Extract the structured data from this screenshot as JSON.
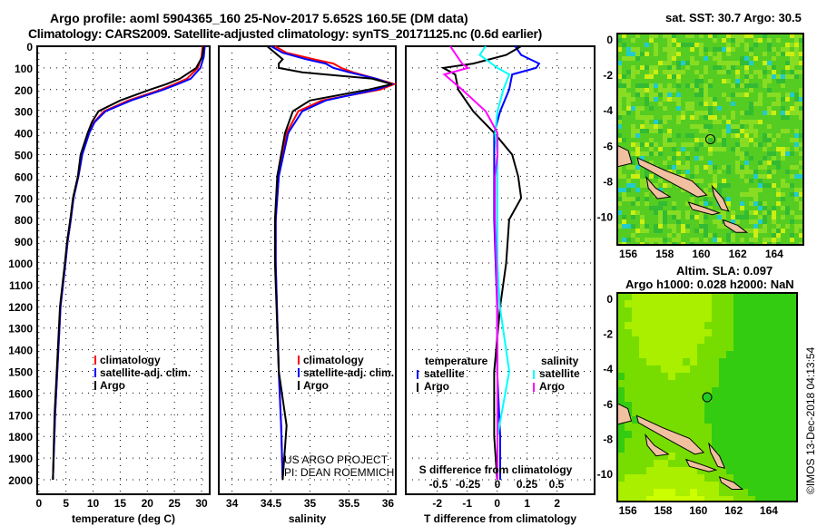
{
  "title_line1": "Argo profile: aoml 5904365_160 25-Nov-2017 5.652S 160.5E (DM data)",
  "title_line2": "Climatology: CARS2009. Satellite-adjusted climatology: synTS_20171125.nc (0.6d earlier)",
  "credit1": "US ARGO PROJECT",
  "credit2": "PI: DEAN ROEMMICH",
  "timestamp": "©IMOS 13-Dec-2018 04:13:54",
  "chart_data": [
    {
      "type": "line",
      "name": "temperature",
      "xlabel": "temperature (deg C)",
      "xlim": [
        -0.3,
        31.5
      ],
      "ylim": [
        2115,
        0
      ],
      "xticks": [
        "0",
        "5",
        "10",
        "15",
        "20",
        "25",
        "30"
      ],
      "xtick_values": [
        0,
        5,
        10,
        15,
        20,
        25,
        30
      ],
      "yticks": [
        "0",
        "100",
        "200",
        "300",
        "400",
        "500",
        "600",
        "700",
        "800",
        "900",
        "1000",
        "1100",
        "1200",
        "1300",
        "1400",
        "1500",
        "1600",
        "1700",
        "1800",
        "1900",
        "2000"
      ],
      "legend": [
        "climatology",
        "satellite-adj. clim.",
        "Argo"
      ],
      "depth": [
        0,
        50,
        100,
        150,
        175,
        200,
        250,
        300,
        350,
        400,
        500,
        600,
        700,
        800,
        900,
        1000,
        1200,
        1500,
        1700,
        2000
      ],
      "series": [
        {
          "name": "climatology",
          "color": "#ff0000",
          "values": [
            30.2,
            30,
            29.3,
            27.3,
            25,
            22.5,
            16.5,
            12,
            10.2,
            9.2,
            8,
            7.3,
            6.4,
            5.9,
            5.3,
            4.9,
            4,
            3.4,
            3.0,
            2.6
          ]
        },
        {
          "name": "satellite-adj. clim.",
          "color": "#0000ff",
          "values": [
            30.6,
            30.4,
            29.8,
            28,
            25.6,
            23,
            17,
            12.3,
            10.3,
            9.3,
            8,
            7.3,
            6.4,
            5.9,
            5.3,
            4.9,
            4,
            3.4,
            3.0,
            2.6
          ]
        },
        {
          "name": "Argo",
          "color": "#000000",
          "values": [
            30.4,
            30.1,
            29,
            26,
            23.5,
            20.5,
            15,
            11,
            9.8,
            9,
            7.7,
            7.2,
            6.3,
            5.8,
            5.2,
            4.8,
            3.9,
            3.3,
            2.9,
            2.6
          ]
        }
      ]
    },
    {
      "type": "line",
      "name": "salinity",
      "xlabel": "salinity",
      "xlim": [
        33.83,
        36.1
      ],
      "ylim": [
        2115,
        0
      ],
      "xticks": [
        "34",
        "34.5",
        "35",
        "35.5",
        "36"
      ],
      "xtick_values": [
        34,
        34.5,
        35,
        35.5,
        36
      ],
      "legend": [
        "climatology",
        "satellite-adj. clim.",
        "Argo"
      ],
      "depth": [
        0,
        30,
        60,
        80,
        100,
        120,
        150,
        175,
        200,
        250,
        300,
        400,
        600,
        800,
        1000,
        1500,
        1750,
        2000
      ],
      "series": [
        {
          "name": "climatology",
          "color": "#ff0000",
          "values": [
            34.55,
            34.7,
            35.05,
            35.3,
            35.4,
            35.55,
            35.85,
            36.08,
            35.9,
            35.15,
            34.85,
            34.7,
            34.6,
            34.56,
            34.56,
            34.6,
            34.63,
            34.65
          ]
        },
        {
          "name": "satellite-adj. clim.",
          "color": "#0000ff",
          "values": [
            34.5,
            34.65,
            34.95,
            35.2,
            35.3,
            35.5,
            35.85,
            36.05,
            35.85,
            35.2,
            34.9,
            34.72,
            34.6,
            34.56,
            34.56,
            34.6,
            34.63,
            34.65
          ]
        },
        {
          "name": "Argo",
          "color": "#000000",
          "values": [
            34.45,
            34.55,
            34.65,
            34.6,
            34.6,
            34.9,
            35.8,
            36.05,
            35.75,
            35.0,
            34.78,
            34.68,
            34.58,
            34.55,
            34.55,
            34.6,
            34.7,
            34.65
          ]
        }
      ]
    },
    {
      "type": "line",
      "name": "difference",
      "xlabel": "T difference from climatology",
      "xlabel2": "S difference from climatology",
      "xlim": [
        -3.05,
        3.25
      ],
      "ylim": [
        2115,
        0
      ],
      "xticks": [
        "-2",
        "-1",
        "0",
        "1",
        "2"
      ],
      "xtick_values": [
        -2,
        -1,
        0,
        1,
        2
      ],
      "s_ticks": [
        "-0.5",
        "-0.25",
        "0",
        "0.25",
        "0.5"
      ],
      "s_tick_values": [
        -0.5,
        -0.25,
        0,
        0.25,
        0.5
      ],
      "legend_t": {
        "title": "temperature",
        "items": [
          "satellite",
          "Argo"
        ]
      },
      "legend_s": {
        "title": "salinity",
        "items": [
          "satellite",
          "Argo"
        ]
      },
      "depth": [
        0,
        40,
        80,
        100,
        130,
        200,
        300,
        400,
        500,
        600,
        700,
        800,
        1000,
        1200,
        1500,
        1800,
        2000
      ],
      "series": [
        {
          "name": "T satellite",
          "color": "#0000ff",
          "values": [
            0.6,
            0.8,
            1.4,
            1.3,
            0.5,
            0.4,
            0.1,
            -0.1,
            -0.1,
            -0.1,
            -0.1,
            -0.1,
            -0.05,
            0,
            0,
            0.1,
            0.1
          ]
        },
        {
          "name": "T Argo",
          "color": "#000000",
          "values": [
            0.8,
            0.3,
            -0.8,
            -1.8,
            -1.4,
            -1.3,
            -0.8,
            -0.1,
            0.5,
            0.7,
            0.8,
            0.4,
            0.3,
            0.1,
            -0.1,
            -0.1,
            0
          ]
        },
        {
          "name": "S satellite",
          "color": "#00ffff",
          "values": [
            -0.1,
            -0.15,
            -0.05,
            0,
            0.1,
            0.05,
            0,
            -0.02,
            0,
            0,
            0,
            0,
            0,
            0.02,
            0.1,
            0,
            0
          ]
        },
        {
          "name": "S Argo",
          "color": "#ff00ff",
          "values": [
            -0.4,
            -0.35,
            -0.3,
            -0.25,
            -0.45,
            -0.3,
            -0.1,
            0,
            0,
            -0.02,
            -0.02,
            -0.02,
            -0.01,
            0,
            0,
            0,
            0
          ]
        }
      ]
    }
  ],
  "maps": [
    {
      "title": "sat. SST: 30.7 Argo: 30.5",
      "xticks": [
        "156",
        "158",
        "160",
        "162",
        "164"
      ],
      "yticks": [
        "0",
        "-2",
        "-4",
        "-6",
        "-8",
        "-10"
      ],
      "argo_lon": 160.5,
      "argo_lat": -5.652
    },
    {
      "title": "Altim. SLA: 0.097",
      "title2": "Argo h1000: 0.028 h2000: NaN",
      "xticks": [
        "156",
        "158",
        "160",
        "162",
        "164"
      ],
      "yticks": [
        "0",
        "-2",
        "-4",
        "-6",
        "-8",
        "-10"
      ],
      "argo_lon": 160.5,
      "argo_lat": -5.652
    }
  ]
}
